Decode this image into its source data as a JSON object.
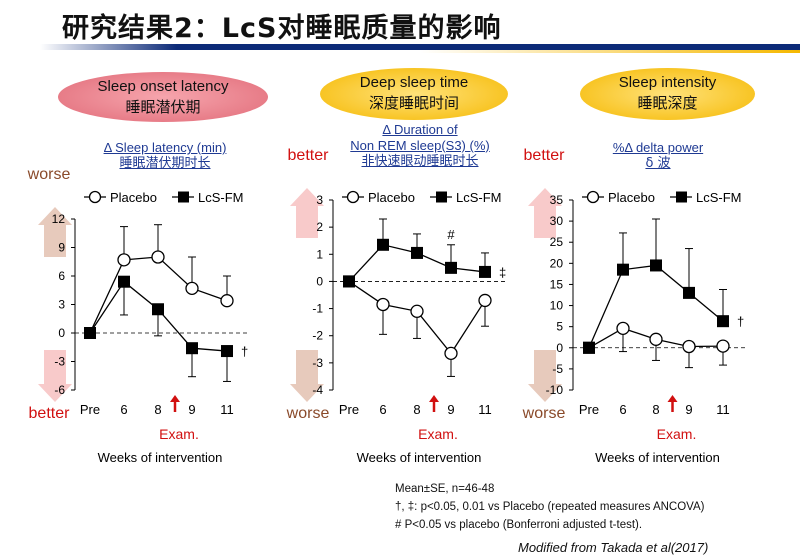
{
  "title": "研究结果2：LcS对睡眠质量的影响",
  "xaxis_title": "Weeks of intervention",
  "exam_label": "Exam.",
  "legend": {
    "placebo": "Placebo",
    "lcs": "LcS-FM"
  },
  "notes": {
    "line1": "Mean±SE, n=46-48",
    "line2": "†, ‡: p<0.05, 0.01 vs Placebo (repeated measures ANCOVA)",
    "line3": "# P<0.05 vs placebo (Bonferroni adjusted t-test)."
  },
  "citation": "Modified from Takada et al(2017)",
  "colors": {
    "worse": "#c98a6b",
    "better": "#f08a8a",
    "red": "#d11010",
    "pink_bubble": "#e16b78",
    "yellow_bubble": "#f5b800",
    "label_blue": "#1f3a93"
  },
  "panels": [
    {
      "bubble_en": "Sleep onset latency",
      "bubble_zh": "睡眠潜伏期",
      "metric_en1": "Δ Sleep latency (min)",
      "metric_en2": "",
      "metric_zh": "睡眠潜伏期时长",
      "top_label": "worse",
      "bottom_label": "better"
    },
    {
      "bubble_en": "Deep sleep time",
      "bubble_zh": "深度睡眠时间",
      "metric_en1": "Δ Duration of",
      "metric_en2": "Non REM sleep(S3) (%)",
      "metric_zh": "非快速眼动睡眠时长",
      "top_label": "better",
      "bottom_label": "worse"
    },
    {
      "bubble_en": "Sleep intensity",
      "bubble_zh": "睡眠深度",
      "metric_en1": "%Δ delta power",
      "metric_en2": "",
      "metric_zh": "δ 波",
      "top_label": "better",
      "bottom_label": "worse"
    }
  ],
  "chart_data": [
    {
      "type": "line",
      "title": "Sleep onset latency",
      "ylabel": "Δ Sleep latency (min)",
      "xlabel": "Weeks of intervention",
      "categories": [
        "Pre",
        "6",
        "8",
        "9",
        "11"
      ],
      "ylim": [
        -6,
        12
      ],
      "yticks": [
        -6,
        -3,
        0,
        3,
        6,
        9,
        12
      ],
      "exam_after": "8",
      "series": [
        {
          "name": "Placebo",
          "marker": "open-circle",
          "values": [
            0,
            7.7,
            8.0,
            4.7,
            3.4
          ],
          "err_up": [
            0,
            3.5,
            3.4,
            3.3,
            2.6
          ],
          "err_down": [
            0,
            0,
            0,
            0,
            0
          ]
        },
        {
          "name": "LcS-FM",
          "marker": "filled-square",
          "values": [
            0,
            5.4,
            2.5,
            -1.6,
            -1.9
          ],
          "err_up": [
            0,
            0,
            0,
            0,
            0
          ],
          "err_down": [
            0,
            3.5,
            2.8,
            3.0,
            3.2
          ]
        }
      ],
      "annotations": [
        {
          "text": "†",
          "at": "11",
          "series": "LcS-FM"
        }
      ]
    },
    {
      "type": "line",
      "title": "Deep sleep time",
      "ylabel": "Δ Duration of Non REM sleep(S3) (%)",
      "xlabel": "Weeks of intervention",
      "categories": [
        "Pre",
        "6",
        "8",
        "9",
        "11"
      ],
      "ylim": [
        -4,
        3
      ],
      "yticks": [
        -4,
        -3,
        -2,
        -1,
        0,
        1,
        2,
        3
      ],
      "exam_after": "8",
      "series": [
        {
          "name": "Placebo",
          "marker": "open-circle",
          "values": [
            0,
            -0.85,
            -1.1,
            -2.65,
            -0.7
          ],
          "err_up": [
            0,
            0,
            0,
            0,
            0
          ],
          "err_down": [
            0,
            1.1,
            1.0,
            0.85,
            0.95
          ]
        },
        {
          "name": "LcS-FM",
          "marker": "filled-square",
          "values": [
            0,
            1.35,
            1.05,
            0.5,
            0.35
          ],
          "err_up": [
            0,
            0.95,
            0.7,
            0.85,
            0.7
          ],
          "err_down": [
            0,
            0,
            0,
            0,
            0
          ]
        }
      ],
      "annotations": [
        {
          "text": "#",
          "at": "9",
          "series": "LcS-FM"
        },
        {
          "text": "‡",
          "at": "11",
          "series": "LcS-FM"
        }
      ]
    },
    {
      "type": "line",
      "title": "Sleep intensity",
      "ylabel": "%Δ delta power",
      "xlabel": "Weeks of intervention",
      "categories": [
        "Pre",
        "6",
        "8",
        "9",
        "11"
      ],
      "ylim": [
        -10,
        35
      ],
      "yticks": [
        -10,
        -5,
        0,
        5,
        10,
        15,
        20,
        25,
        30,
        35
      ],
      "exam_after": "8",
      "series": [
        {
          "name": "Placebo",
          "marker": "open-circle",
          "values": [
            0,
            4.6,
            2.0,
            0.3,
            0.4
          ],
          "err_up": [
            0,
            0,
            0,
            0,
            0
          ],
          "err_down": [
            0,
            5.5,
            5.0,
            5.0,
            4.5
          ]
        },
        {
          "name": "LcS-FM",
          "marker": "filled-square",
          "values": [
            0,
            18.5,
            19.5,
            13.0,
            6.3
          ],
          "err_up": [
            0,
            8.7,
            11.0,
            10.5,
            7.5
          ],
          "err_down": [
            0,
            0,
            0,
            0,
            0
          ]
        }
      ],
      "annotations": [
        {
          "text": "†",
          "at": "11",
          "series": "LcS-FM"
        }
      ]
    }
  ]
}
